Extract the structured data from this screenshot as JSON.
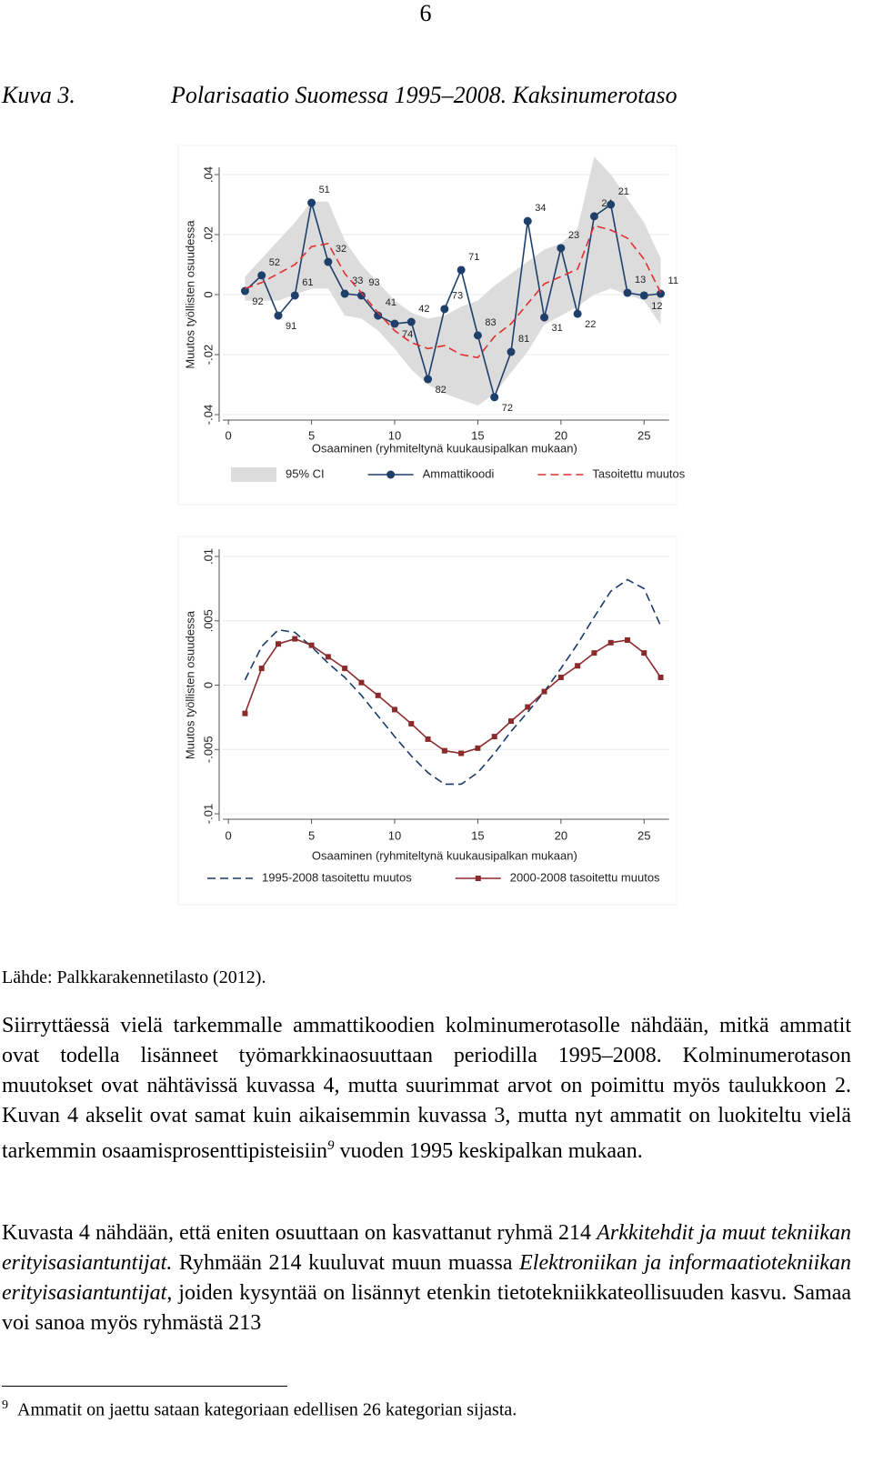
{
  "page_number": "6",
  "figure": {
    "label": "Kuva 3.",
    "title": "Polarisaatio Suomessa 1995–2008. Kaksinumerotaso"
  },
  "chart_data": [
    {
      "type": "line",
      "ylabel": "Muutos työllisten osuudessa",
      "xlabel": "Osaaminen (ryhmiteltynä kuukausipalkan mukaan)",
      "x": [
        1,
        2,
        3,
        4,
        5,
        6,
        7,
        8,
        9,
        10,
        11,
        12,
        13,
        14,
        15,
        16,
        17,
        18,
        19,
        20,
        21,
        22,
        23,
        24,
        25,
        26
      ],
      "xlim": [
        -0.5,
        26.5
      ],
      "xticks": [
        0,
        5,
        10,
        15,
        20,
        25
      ],
      "ylim": [
        -0.04,
        0.04
      ],
      "yticks": [
        {
          "value": -0.04,
          "label": "-.04"
        },
        {
          "value": -0.02,
          "label": "-.02"
        },
        0,
        {
          "value": 0.02,
          "label": ".02"
        },
        {
          "value": 0.04,
          "label": ".04"
        }
      ],
      "grid": true,
      "legend": "bottom",
      "series": [
        {
          "name": "95% CI",
          "type": "band",
          "color": "#dcdcdc",
          "lower": [
            -0.002,
            -0.002,
            -0.002,
            0.0,
            0.002,
            0.002,
            -0.007,
            -0.008,
            -0.012,
            -0.018,
            -0.025,
            -0.03,
            -0.033,
            -0.035,
            -0.037,
            -0.033,
            -0.026,
            -0.019,
            -0.01,
            -0.007,
            -0.004,
            0.0,
            0.002,
            0.0,
            -0.002,
            -0.01
          ],
          "upper": [
            0.006,
            0.012,
            0.018,
            0.024,
            0.031,
            0.031,
            0.018,
            0.01,
            0.004,
            -0.002,
            -0.006,
            -0.008,
            -0.007,
            -0.004,
            -0.002,
            0.003,
            0.007,
            0.011,
            0.015,
            0.017,
            0.022,
            0.046,
            0.04,
            0.032,
            0.024,
            0.012
          ]
        },
        {
          "name": "Ammattikoodi",
          "color": "#1f3f6b",
          "marker": "circle",
          "values": [
            0.0012,
            0.0064,
            -0.007,
            -0.0003,
            0.0306,
            0.0109,
            0.0003,
            -0.0003,
            -0.007,
            -0.0097,
            -0.0091,
            -0.0282,
            -0.0048,
            0.0082,
            -0.0136,
            -0.0342,
            -0.0191,
            0.0245,
            -0.0076,
            0.0155,
            -0.0064,
            0.0261,
            0.03,
            0.0006,
            -0.0003,
            0.0003
          ],
          "point_labels": [
            "92",
            "52",
            "91",
            "61",
            "51",
            "32",
            "33",
            "93",
            "41",
            "74",
            "42",
            "82",
            "73",
            "71",
            "83",
            "72",
            "81",
            "34",
            "31",
            "23",
            "22",
            "24",
            "21",
            "13",
            "12",
            "11"
          ]
        },
        {
          "name": "Tasoitettu muutos",
          "color": "#e03030",
          "dash": true,
          "values": [
            0.002,
            0.004,
            0.007,
            0.01,
            0.016,
            0.017,
            0.007,
            0.0006,
            -0.006,
            -0.012,
            -0.016,
            -0.018,
            -0.017,
            -0.02,
            -0.021,
            -0.014,
            -0.0097,
            -0.003,
            0.0036,
            0.006,
            0.0085,
            0.023,
            0.0215,
            0.0188,
            0.0118,
            0.0006
          ]
        }
      ]
    },
    {
      "type": "line",
      "ylabel": "Muutos työllisten osuudessa",
      "xlabel": "Osaaminen (ryhmiteltynä kuukausipalkan mukaan)",
      "x": [
        1,
        2,
        3,
        4,
        5,
        6,
        7,
        8,
        9,
        10,
        11,
        12,
        13,
        14,
        15,
        16,
        17,
        18,
        19,
        20,
        21,
        22,
        23,
        24,
        25,
        26
      ],
      "xlim": [
        -0.5,
        26.5
      ],
      "xticks": [
        0,
        5,
        10,
        15,
        20,
        25
      ],
      "ylim": [
        -0.01,
        0.01
      ],
      "yticks": [
        {
          "value": -0.01,
          "label": "-.01"
        },
        {
          "value": -0.005,
          "label": "-.005"
        },
        0,
        {
          "value": 0.005,
          "label": ".005"
        },
        {
          "value": 0.01,
          "label": ".01"
        }
      ],
      "grid": true,
      "legend": "bottom",
      "series": [
        {
          "name": "1995-2008 tasoitettu muutos",
          "color": "#1a3a6b",
          "dash": true,
          "values": [
            0.0004,
            0.003,
            0.0043,
            0.0041,
            0.003,
            0.0017,
            0.0006,
            -0.0008,
            -0.0024,
            -0.004,
            -0.0055,
            -0.0068,
            -0.0077,
            -0.0077,
            -0.0068,
            -0.0053,
            -0.0036,
            -0.0021,
            -0.0005,
            0.0013,
            0.0032,
            0.0053,
            0.0073,
            0.0082,
            0.0075,
            0.0046
          ]
        },
        {
          "name": "2000-2008 tasoitettu muutos",
          "color": "#8b2a2a",
          "marker": "square",
          "values": [
            -0.0022,
            0.0013,
            0.0032,
            0.0036,
            0.0031,
            0.0022,
            0.0013,
            0.0002,
            -0.0008,
            -0.0019,
            -0.003,
            -0.0042,
            -0.0051,
            -0.0053,
            -0.0049,
            -0.004,
            -0.0028,
            -0.0017,
            -0.0005,
            0.0006,
            0.0015,
            0.0025,
            0.0033,
            0.0035,
            0.0025,
            0.0006
          ]
        }
      ]
    }
  ],
  "source": "Lähde: Palkkarakennetilasto (2012).",
  "paragraphs": [
    [
      "Siirryttäessä vielä tarkemmalle ammattikoodien kolminumerotasolle nähdään, mitkä ammatit ovat todella lisänneet työmarkkinaosuuttaan periodilla 1995–2008. Kolminumerotason muutokset ovat nähtävissä kuvassa 4, mutta suurimmat arvot on poimittu myös taulukkoon 2. Kuvan 4 akselit ovat samat kuin aikaisemmin kuvassa 3, mutta nyt ammatit on luokiteltu vielä tarkemmin osaamisprosenttipisteisiin",
      "9",
      " vuoden 1995 keskipalkan mukaan."
    ],
    [
      "Kuvasta 4 nähdään, että eniten osuuttaan on kasvattanut ryhmä 214 ",
      "Arkkitehdit ja muut tekniikan erityisasiantuntijat.",
      " Ryhmään 214 kuuluvat muun muassa ",
      "Elektroniikan ja informaatiotekniikan erityisasiantuntijat",
      ", joiden kysyntää on lisännyt etenkin tietotekniikkateollisuuden kasvu. Samaa voi sanoa myös ryhmästä 213"
    ]
  ],
  "footnote": {
    "mark": "9",
    "text": "Ammatit on jaettu sataan kategoriaan edellisen 26 kategorian sijasta."
  }
}
